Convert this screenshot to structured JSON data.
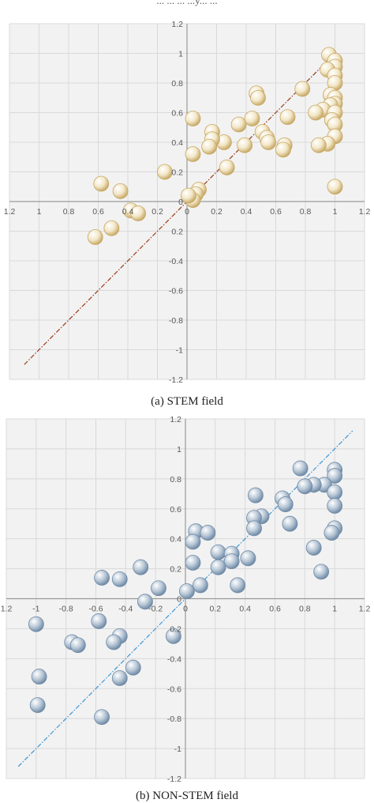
{
  "header_fragment": "...  ...  ...  ...y...  ...",
  "colors": {
    "plot_bg": "#f2f2f2",
    "grid": "#d9d9d9",
    "axis": "#9a9a9a",
    "stem_fill": "#f2e7c8",
    "stem_stroke": "#c8a865",
    "stem_line": "#9b3a17",
    "nonstem_fill": "#b8c7d6",
    "nonstem_stroke": "#6f8aa6",
    "nonstem_line": "#3f97d4"
  },
  "chart_data": [
    {
      "type": "scatter",
      "caption": "(a)  STEM  field",
      "xlim": [
        -1.2,
        1.2
      ],
      "ylim": [
        -1.2,
        1.2
      ],
      "x_ticks": [
        "1.2",
        "1",
        "0.8",
        "0.6",
        "0.4",
        "0.2",
        "0",
        "0.2",
        "0.4",
        "0.6",
        "0.8",
        "1",
        "1.2"
      ],
      "y_ticks": [
        "1.2",
        "1",
        "0.8",
        "0.6",
        "0.4",
        "0.2",
        "0",
        "0.2",
        "-0.4",
        "-0.6",
        "-0.8",
        "-1",
        "-1.2"
      ],
      "trend_line": [
        [
          -1.1,
          -1.1
        ],
        [
          1.0,
          1.0
        ]
      ],
      "points": [
        [
          0.96,
          0.99
        ],
        [
          1.0,
          0.95
        ],
        [
          1.0,
          0.91
        ],
        [
          0.95,
          0.89
        ],
        [
          1.0,
          0.85
        ],
        [
          1.0,
          0.8
        ],
        [
          0.97,
          0.72
        ],
        [
          1.0,
          0.7
        ],
        [
          1.0,
          0.66
        ],
        [
          0.97,
          0.65
        ],
        [
          0.92,
          0.62
        ],
        [
          0.87,
          0.6
        ],
        [
          1.0,
          0.6
        ],
        [
          0.98,
          0.55
        ],
        [
          1.0,
          0.52
        ],
        [
          1.0,
          0.44
        ],
        [
          0.95,
          0.39
        ],
        [
          0.89,
          0.38
        ],
        [
          1.0,
          0.1
        ],
        [
          0.78,
          0.76
        ],
        [
          0.47,
          0.73
        ],
        [
          0.48,
          0.7
        ],
        [
          0.68,
          0.57
        ],
        [
          0.44,
          0.56
        ],
        [
          0.35,
          0.52
        ],
        [
          0.51,
          0.47
        ],
        [
          0.54,
          0.43
        ],
        [
          0.55,
          0.4
        ],
        [
          0.66,
          0.38
        ],
        [
          0.65,
          0.35
        ],
        [
          0.39,
          0.38
        ],
        [
          0.25,
          0.4
        ],
        [
          0.17,
          0.47
        ],
        [
          0.17,
          0.42
        ],
        [
          0.15,
          0.37
        ],
        [
          0.27,
          0.23
        ],
        [
          0.04,
          0.56
        ],
        [
          0.04,
          0.32
        ],
        [
          0.08,
          0.08
        ],
        [
          0.06,
          0.05
        ],
        [
          0.04,
          0.01
        ],
        [
          0.01,
          0.04
        ],
        [
          -0.15,
          0.2
        ],
        [
          -0.58,
          0.12
        ],
        [
          -0.45,
          0.07
        ],
        [
          -0.38,
          -0.06
        ],
        [
          -0.33,
          -0.08
        ],
        [
          -0.51,
          -0.18
        ],
        [
          -0.62,
          -0.24
        ]
      ]
    },
    {
      "type": "scatter",
      "caption": "(b)  NON-STEM  field",
      "xlim": [
        -1.2,
        1.2
      ],
      "ylim": [
        -1.2,
        1.2
      ],
      "x_ticks": [
        "1.2",
        "-1",
        "-0.8",
        "-0.6",
        "-0.4",
        "-0.2",
        "0",
        "0.2",
        "0.4",
        "0.6",
        "0.8",
        "1",
        "1.2"
      ],
      "y_ticks": [
        "1.2",
        "1",
        "0.8",
        "0.6",
        "0.4",
        "0.2",
        "0",
        "0.2",
        "-0.4",
        "-0.6",
        "-0.8",
        "-1",
        "-1.2"
      ],
      "trend_line": [
        [
          -1.12,
          -1.12
        ],
        [
          1.12,
          1.12
        ]
      ],
      "points": [
        [
          0.77,
          0.87
        ],
        [
          1.0,
          0.86
        ],
        [
          1.0,
          0.82
        ],
        [
          0.93,
          0.76
        ],
        [
          0.86,
          0.76
        ],
        [
          0.8,
          0.75
        ],
        [
          1.0,
          0.71
        ],
        [
          1.0,
          0.62
        ],
        [
          1.0,
          0.47
        ],
        [
          0.98,
          0.44
        ],
        [
          0.47,
          0.69
        ],
        [
          0.65,
          0.67
        ],
        [
          0.67,
          0.63
        ],
        [
          0.7,
          0.5
        ],
        [
          0.51,
          0.55
        ],
        [
          0.46,
          0.54
        ],
        [
          0.46,
          0.47
        ],
        [
          0.86,
          0.34
        ],
        [
          0.91,
          0.18
        ],
        [
          0.07,
          0.45
        ],
        [
          0.15,
          0.44
        ],
        [
          0.05,
          0.38
        ],
        [
          0.05,
          0.24
        ],
        [
          0.22,
          0.31
        ],
        [
          0.31,
          0.3
        ],
        [
          0.42,
          0.27
        ],
        [
          0.31,
          0.25
        ],
        [
          0.22,
          0.21
        ],
        [
          0.35,
          0.09
        ],
        [
          0.1,
          0.09
        ],
        [
          0.01,
          0.05
        ],
        [
          -0.56,
          0.14
        ],
        [
          -0.44,
          0.13
        ],
        [
          -0.3,
          0.21
        ],
        [
          -0.18,
          0.07
        ],
        [
          -0.27,
          -0.02
        ],
        [
          -0.08,
          -0.25
        ],
        [
          -0.58,
          -0.15
        ],
        [
          -0.44,
          -0.25
        ],
        [
          -0.48,
          -0.29
        ],
        [
          -0.76,
          -0.29
        ],
        [
          -0.72,
          -0.31
        ],
        [
          -1.0,
          -0.17
        ],
        [
          -0.35,
          -0.46
        ],
        [
          -0.44,
          -0.53
        ],
        [
          -0.98,
          -0.52
        ],
        [
          -0.99,
          -0.71
        ],
        [
          -0.56,
          -0.79
        ]
      ]
    }
  ]
}
